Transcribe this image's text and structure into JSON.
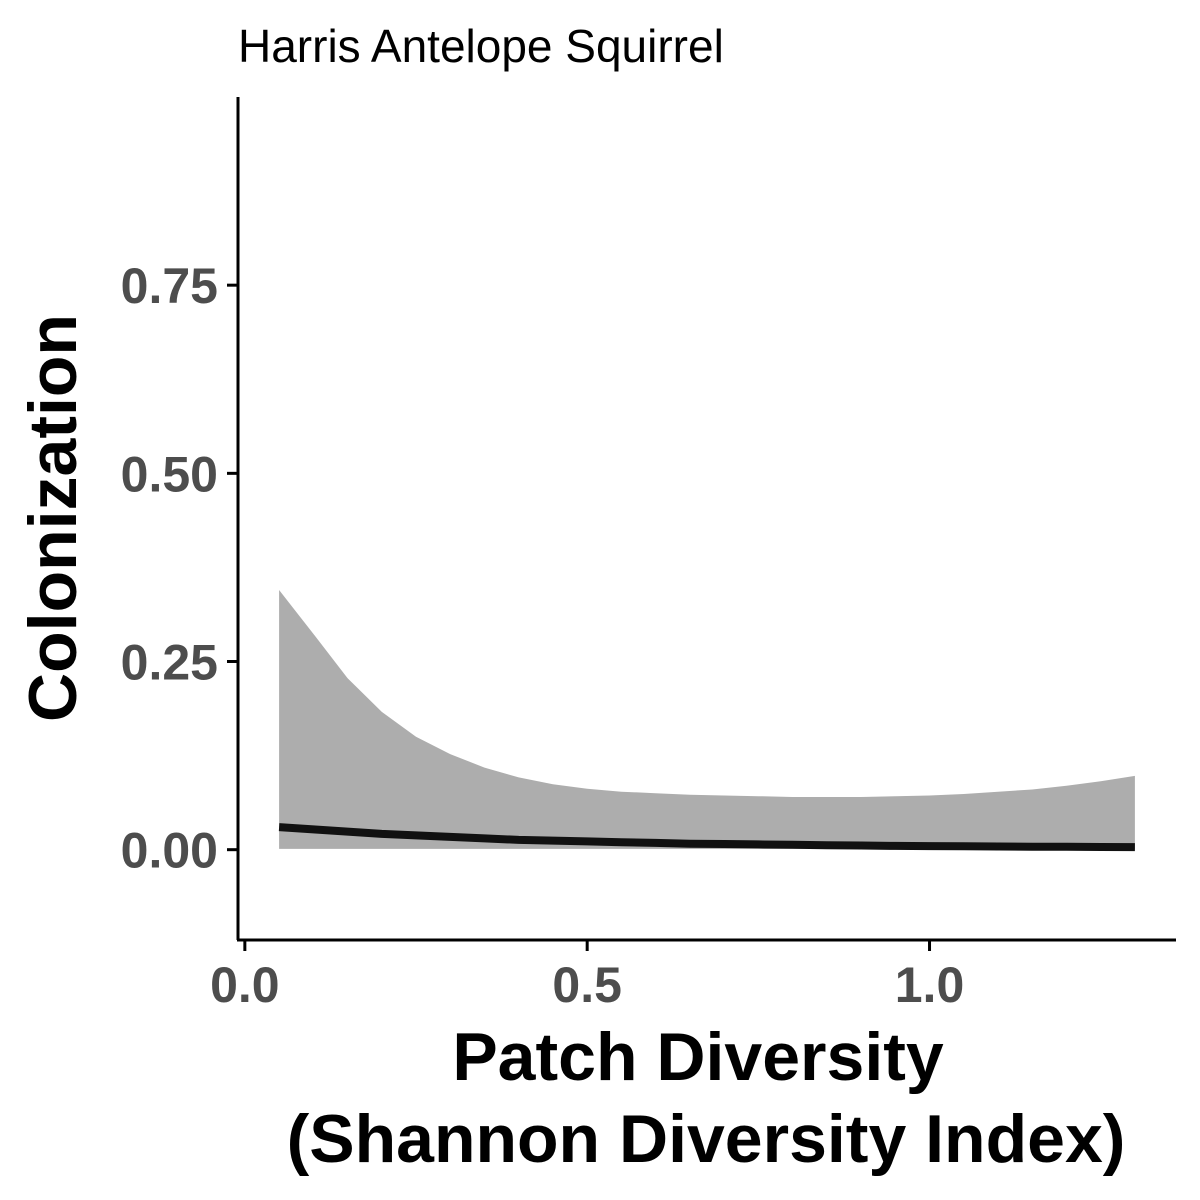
{
  "chart_data": {
    "type": "line",
    "title": "Harris Antelope Squirrel",
    "xlabel_lines": [
      "Patch Diversity",
      "(Shannon Diversity Index)"
    ],
    "ylabel": "Colonization",
    "xlim": [
      -0.01,
      1.36
    ],
    "ylim": [
      -0.12,
      1.0
    ],
    "x_ticks": [
      0.0,
      0.5,
      1.0
    ],
    "x_tick_labels": [
      "0.0",
      "0.5",
      "1.0"
    ],
    "y_ticks": [
      0.0,
      0.25,
      0.5,
      0.75
    ],
    "y_tick_labels": [
      "0.00",
      "0.25",
      "0.50",
      "0.75"
    ],
    "grid": false,
    "colors": {
      "line": "#111111",
      "ribbon": "#adadad",
      "axis": "#000000",
      "tick_label": "#4d4d4d"
    },
    "series": [
      {
        "x": [
          0.05,
          0.1,
          0.15,
          0.2,
          0.25,
          0.3,
          0.35,
          0.4,
          0.45,
          0.5,
          0.55,
          0.6,
          0.65,
          0.7,
          0.75,
          0.8,
          0.85,
          0.9,
          0.95,
          1.0,
          1.05,
          1.1,
          1.15,
          1.2,
          1.25,
          1.3
        ],
        "y": [
          0.03,
          0.027,
          0.024,
          0.021,
          0.019,
          0.017,
          0.015,
          0.013,
          0.012,
          0.011,
          0.01,
          0.009,
          0.008,
          0.0075,
          0.007,
          0.0065,
          0.006,
          0.0055,
          0.005,
          0.0048,
          0.0045,
          0.0042,
          0.004,
          0.0038,
          0.0036,
          0.0034
        ],
        "lower": [
          0.001,
          0.001,
          0.001,
          0.001,
          0.001,
          0.001,
          0.001,
          0.001,
          0.001,
          0.001,
          0.001,
          0.001,
          0.001,
          0.001,
          0.001,
          0.001,
          0.001,
          0.001,
          0.0008,
          0.0007,
          0.0006,
          0.0005,
          0.0004,
          0.0003,
          0.0002,
          0.0001
        ],
        "upper": [
          0.345,
          0.287,
          0.228,
          0.183,
          0.15,
          0.127,
          0.109,
          0.096,
          0.087,
          0.081,
          0.077,
          0.075,
          0.073,
          0.072,
          0.071,
          0.07,
          0.07,
          0.07,
          0.071,
          0.072,
          0.074,
          0.077,
          0.08,
          0.085,
          0.091,
          0.098
        ]
      }
    ]
  }
}
